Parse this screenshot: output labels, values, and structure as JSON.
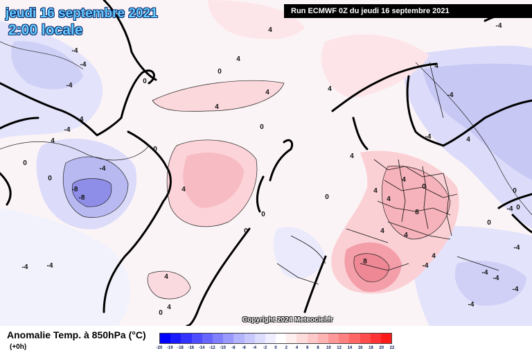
{
  "header": {
    "date_title": "jeudi 16 septembre 2021",
    "time_title": "2:00 locale",
    "run_label": "Run ECMWF 0Z du jeudi 16 septembre 2021"
  },
  "map": {
    "copyright": "Copyright 2024 Meteociel.fr",
    "contour_labels": [
      "4",
      "4",
      "-4",
      "-4",
      "0",
      "4",
      "4",
      "4",
      "0",
      "-4",
      "-4",
      "0",
      "4",
      "-4",
      "0",
      "4",
      "0",
      "-4",
      "-8",
      "-8",
      "4",
      "0",
      "4",
      "4",
      "4",
      "0",
      "0",
      "8",
      "8",
      "4",
      "4",
      "4",
      "-4",
      "-4",
      "4",
      "0",
      "0",
      "0",
      "-4",
      "4",
      "-4",
      "-4",
      "-4",
      "4",
      "0",
      "0",
      "-4",
      "-4",
      "-4",
      "-4",
      "4",
      "-4",
      "-4",
      "0"
    ]
  },
  "footer": {
    "variable_title": "Anomalie Temp. à 850hPa (°C)",
    "offset_label": "(+0h)"
  },
  "legend": {
    "ticks": [
      "-20",
      "-19",
      "-18",
      "-16",
      "-14",
      "-12",
      "-10",
      "-8",
      "-6",
      "-4",
      "-2",
      "0",
      "2",
      "4",
      "6",
      "8",
      "10",
      "12",
      "14",
      "16",
      "18",
      "20",
      "22"
    ],
    "colors": [
      "#0000ff",
      "#1a1aff",
      "#3333ff",
      "#4d4dff",
      "#6666ff",
      "#8080ff",
      "#9999ff",
      "#b3b3ff",
      "#c8c8ff",
      "#dcdcff",
      "#eeeeff",
      "#ffffff",
      "#ffeeee",
      "#ffdcdc",
      "#ffc8c8",
      "#ffb3b3",
      "#ff9999",
      "#ff8080",
      "#ff6666",
      "#ff4d4d",
      "#ff3333",
      "#ff1a1a"
    ]
  }
}
